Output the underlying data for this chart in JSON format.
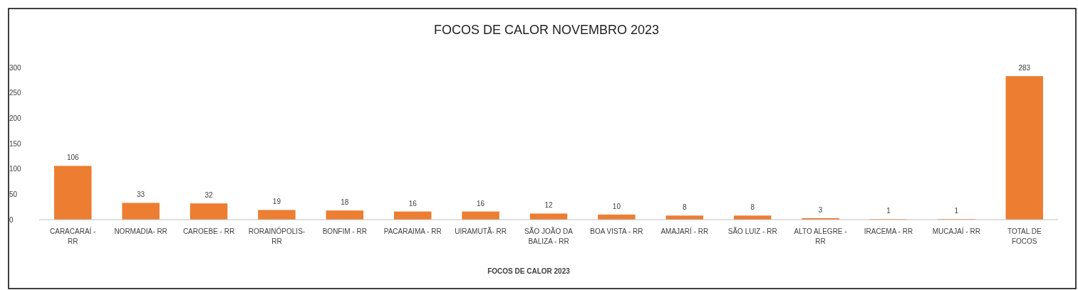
{
  "chart_data": {
    "type": "bar",
    "title": "FOCOS DE CALOR NOVEMBRO 2023",
    "xlabel": "FOCOS DE CALOR 2023",
    "categories": [
      "CARACARAÍ - RR",
      "NORMADIA- RR",
      "CAROEBE - RR",
      "RORAINÓPOLIS- RR",
      "BONFIM - RR",
      "PACARAIMA - RR",
      "UIRAMUTÃ- RR",
      "SÃO JOÃO DA BALIZA - RR",
      "BOA VISTA - RR",
      "AMAJARÍ - RR",
      "SÃO LUIZ - RR",
      "ALTO ALEGRE - RR",
      "IRACEMA - RR",
      "MUCAJAÍ - RR",
      "TOTAL DE FOCOS"
    ],
    "values": [
      106,
      33,
      32,
      19,
      18,
      16,
      16,
      12,
      10,
      8,
      8,
      3,
      1,
      1,
      283
    ],
    "color": "#ed7d31",
    "ylim": [
      0,
      300
    ],
    "yticks": [
      0,
      50,
      100,
      150,
      200,
      250,
      300
    ],
    "data_labels": true,
    "grid": false
  }
}
